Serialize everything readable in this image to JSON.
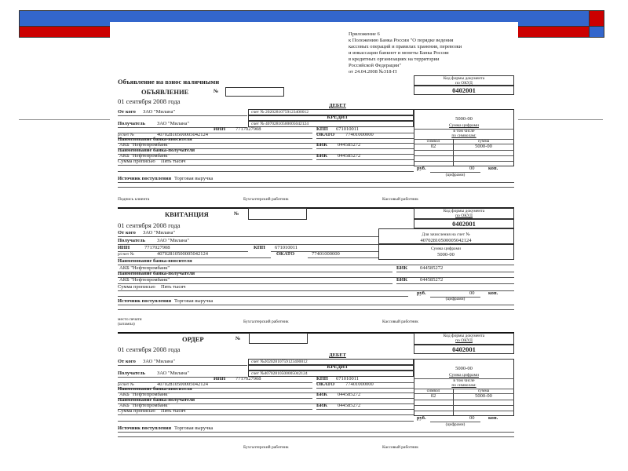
{
  "slide": {
    "colors": {
      "blue": "#3366cc",
      "red": "#cc0000",
      "rule": "#888888"
    }
  },
  "appendix": {
    "lines": [
      "Приложение 6",
      "к Положению Банка России \"О порядке ведения",
      "кассовых операций и правилах хранения, перевозки",
      "и инкассации банкнот и монеты Банка России",
      "в кредитных организациях на территории",
      "Российской Федерации\"",
      "от 24.04.2008 №318-П"
    ]
  },
  "notice": {
    "heading": "Объявление на взнос наличными",
    "title": "ОБЪЯВЛЕНИЕ",
    "number_label": "№",
    "date": "01 сентября 2008 года",
    "code_label_1": "Код формы документа",
    "code_label_2": "по ОКУД",
    "code": "0402001",
    "debit_label": "ДЕБЕТ",
    "credit_label": "КРЕДИТ",
    "from_label": "От кого",
    "from_value": "ЗАО \"Милана\"",
    "debit_account": "счет № 20202810759123400012",
    "recipient_label": "Получатель",
    "recipient_value": "ЗАО \"Милана\"",
    "credit_account": "счет № 40702810500005042124",
    "inn_label": "ИНН",
    "inn": "7717027908",
    "kpp_label": "КПП",
    "kpp": "671010011",
    "account_label": "р/счет №",
    "account": "40702810500005042124",
    "okato_label": "ОКАТО",
    "okato": "77401000000",
    "payer_bank_label": "Наименование банка-вносителя",
    "payer_bank": "АКБ \"Нефтепромбанк\"",
    "bik_label": "БИК",
    "payer_bik": "044585272",
    "payee_bank_label": "Наименование банка-получателя",
    "payee_bank": "АКБ \"Нефтепромбанк\"",
    "payee_bik": "044585272",
    "amount_words_label": "Сумма прописью",
    "amount_words": "Пять тысяч",
    "rub": "руб.",
    "kop_value": "00",
    "kop": "коп.",
    "digits_note": "(цифрами)",
    "source_label": "Источник поступления",
    "source": "Торговая выручка",
    "amount": "5000-00",
    "amount_label": "Сумма цифрами",
    "including": "в том числе",
    "by_symbols": "по символам:",
    "symbol_header": "символ",
    "sum_header": "сумма",
    "symbol": "02",
    "symbol_sum": "5000-00",
    "signatures": [
      "Подпись клиента",
      "Бухгалтерский работник",
      "Кассовый работник"
    ]
  },
  "receipt": {
    "title": "КВИТАНЦИЯ",
    "number_label": "№",
    "date": "01 сентября 2008 года",
    "code_label_1": "Код формы документа",
    "code_label_2": "по ОКУД",
    "code": "0402001",
    "from_label": "От кого",
    "from_value": "ЗАО \"Милана\"",
    "recipient_label": "Получатель",
    "recipient_value": "ЗАО \"Милана\"",
    "credit_to_label": "Для зачисления на счет №",
    "credit_to_account": "40702810500005042124",
    "amount_label": "Сумма цифрами",
    "amount": "5000-00",
    "inn_label": "ИНН",
    "inn": "7717027908",
    "kpp_label": "КПП",
    "kpp": "671010011",
    "account_label": "р/счет №",
    "account": "40702810500005042124",
    "okato_label": "ОКАТО",
    "okato": "77401000000",
    "payer_bank_label": "Наименование банка-вносителя",
    "payer_bank": "АКБ \"Нефтепромбанк\"",
    "bik_label": "БИК",
    "payer_bik": "044585272",
    "payee_bank_label": "Наименование банка-получателя",
    "payee_bank": "АКБ \"Нефтепромбанк\"",
    "payee_bik": "044585272",
    "amount_words_label": "Сумма прописью",
    "amount_words": "Пять тысяч",
    "rub": "руб.",
    "kop_value": "00",
    "kop": "коп.",
    "digits_note": "(цифрами)",
    "source_label": "Источник поступления",
    "source": "Торговая выручка",
    "stamp_1": "место печати",
    "stamp_2": "(штампа)",
    "signatures": [
      "Бухгалтерский работник",
      "Кассовый работник"
    ]
  },
  "order": {
    "title": "ОРДЕР",
    "number_label": "№",
    "date": "01 сентября 2008 года",
    "code_label_1": "Код формы документа",
    "code_label_2": "по ОКУД",
    "code": "0402001",
    "debit_label": "ДЕБЕТ",
    "credit_label": "КРЕДИТ",
    "from_label": "От кого",
    "from_value": "ЗАО \"Милана\"",
    "debit_account": "счет №20202810759123400012",
    "recipient_label": "Получатель",
    "recipient_value": "ЗАО \"Милана\"",
    "credit_account": "счет №40702810500005042124",
    "inn_label": "ИНН",
    "inn": "7717027908",
    "kpp_label": "КПП",
    "kpp": "671010011",
    "account_label": "р/счет №",
    "account": "40702810500005042124",
    "okato_label": "ОКАТО",
    "okato": "77401000000",
    "payer_bank_label": "Наименование банка-вносителя",
    "payer_bank": "АКБ \"Нефтепромбанк\"",
    "bik_label": "БИК",
    "payer_bik": "044585272",
    "payee_bank_label": "Наименование банка-получателя",
    "payee_bank": "АКБ \"Нефтепромбанк\"",
    "payee_bik": "044585272",
    "amount_words_label": "Сумма прописью",
    "amount_words": "Пять тысяч",
    "rub": "руб.",
    "kop_value": "00",
    "kop": "коп.",
    "digits_note": "(цифрами)",
    "source_label": "Источник поступления",
    "source": "Торговая выручка",
    "amount": "5000-00",
    "amount_label": "Сумма цифрами",
    "including": "в том числе",
    "by_symbols": "по символам:",
    "symbol_header": "символ",
    "sum_header": "сумма",
    "symbol": "02",
    "symbol_sum": "5000-00",
    "signatures": [
      "Бухгалтерский работник",
      "Кассовый работник"
    ]
  }
}
